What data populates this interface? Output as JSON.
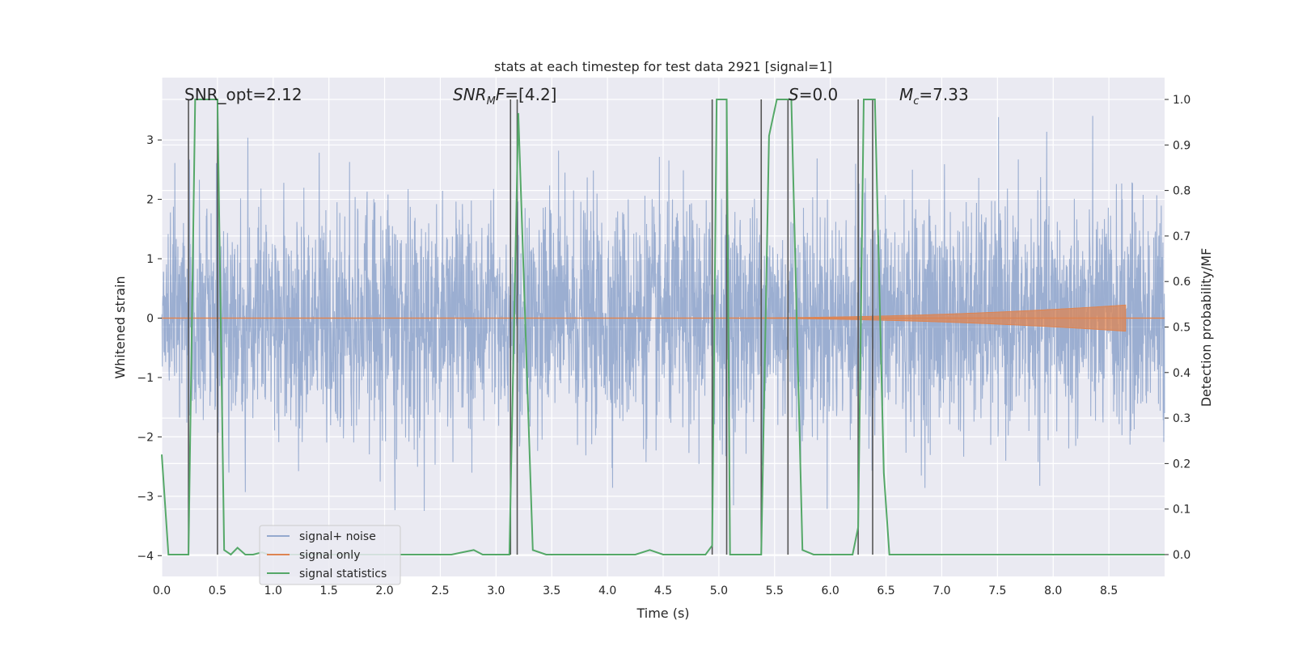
{
  "chart_data": {
    "type": "line",
    "title": "stats at each timestep for test data 2921 [signal=1]",
    "xlabel": "Time (s)",
    "ylabel": "Whitened strain",
    "y2label": "Detection probability/MF",
    "xlim": [
      0,
      9
    ],
    "ylim": [
      -4.35,
      4.05
    ],
    "y2lim": [
      -0.048,
      1.048
    ],
    "xticks": [
      0.0,
      0.5,
      1.0,
      1.5,
      2.0,
      2.5,
      3.0,
      3.5,
      4.0,
      4.5,
      5.0,
      5.5,
      6.0,
      6.5,
      7.0,
      7.5,
      8.0,
      8.5
    ],
    "xtick_labels": [
      "0.0",
      "0.5",
      "1.0",
      "1.5",
      "2.0",
      "2.5",
      "3.0",
      "3.5",
      "4.0",
      "4.5",
      "5.0",
      "5.5",
      "6.0",
      "6.5",
      "7.0",
      "7.5",
      "8.0",
      "8.5"
    ],
    "yticks": [
      -4,
      -3,
      -2,
      -1,
      0,
      1,
      2,
      3
    ],
    "ytick_labels": [
      "−4",
      "−3",
      "−2",
      "−1",
      "0",
      "1",
      "2",
      "3"
    ],
    "y2ticks": [
      0.0,
      0.1,
      0.2,
      0.3,
      0.4,
      0.5,
      0.6,
      0.7,
      0.8,
      0.9,
      1.0
    ],
    "y2tick_labels": [
      "0.0",
      "0.1",
      "0.2",
      "0.3",
      "0.4",
      "0.5",
      "0.6",
      "0.7",
      "0.8",
      "0.9",
      "1.0"
    ],
    "grid": true,
    "legend_position": "lower-left",
    "series": [
      {
        "name": "signal+ noise",
        "color": "#4c72b0",
        "kind": "noise",
        "sigma": 0.95,
        "duration": 9.0
      },
      {
        "name": "signal only",
        "color": "#dd8452",
        "kind": "chirp",
        "start": 4.8,
        "end": 8.65,
        "max_amp": 0.22
      },
      {
        "name": "signal statistics",
        "color": "#55a868",
        "kind": "probability",
        "axis": "right",
        "x": [
          0.0,
          0.06,
          0.1,
          0.15,
          0.24,
          0.3,
          0.35,
          0.4,
          0.45,
          0.5,
          0.56,
          0.62,
          0.68,
          0.75,
          0.82,
          0.9,
          0.96,
          1.02,
          1.1,
          2.5,
          2.6,
          2.7,
          2.8,
          2.88,
          2.95,
          3.05,
          3.12,
          3.2,
          3.33,
          3.45,
          3.6,
          3.8,
          4.0,
          4.25,
          4.38,
          4.5,
          4.6,
          4.75,
          4.88,
          4.94,
          4.98,
          5.0,
          5.07,
          5.1,
          5.2,
          5.3,
          5.38,
          5.45,
          5.52,
          5.6,
          5.65,
          5.75,
          5.85,
          6.0,
          6.1,
          6.2,
          6.25,
          6.3,
          6.4,
          6.48,
          6.53,
          6.6,
          7.0,
          8.0,
          9.0
        ],
        "y": [
          0.22,
          0.0,
          0.0,
          0.0,
          0.0,
          1.0,
          1.0,
          1.0,
          1.0,
          1.0,
          0.01,
          0.0,
          0.015,
          0.0,
          0.0,
          0.005,
          0.0,
          0.0,
          0.0,
          0.0,
          0.0,
          0.005,
          0.01,
          0.0,
          0.0,
          0.0,
          0.0,
          0.97,
          0.01,
          0.0,
          0.0,
          0.0,
          0.0,
          0.0,
          0.01,
          0.0,
          0.0,
          0.0,
          0.0,
          0.02,
          1.0,
          1.0,
          1.0,
          0.0,
          0.0,
          0.0,
          0.0,
          0.92,
          1.0,
          1.0,
          1.0,
          0.01,
          0.0,
          0.0,
          0.0,
          0.0,
          0.06,
          1.0,
          1.0,
          0.18,
          0.0,
          0.0,
          0.0,
          0.0,
          0.0
        ]
      }
    ],
    "vlines": [
      0.24,
      0.5,
      3.13,
      3.19,
      4.94,
      5.07,
      5.38,
      5.62,
      6.25,
      6.38
    ],
    "annotations": [
      {
        "id": "snr-opt",
        "text": "SNR_opt=2.12",
        "x": 0.2
      },
      {
        "id": "snr-mf",
        "text": "SNR_MF=[4.2]",
        "x": 2.6
      },
      {
        "id": "s-stat",
        "text": "S=0.0",
        "x": 5.6
      },
      {
        "id": "mc",
        "text": "M_c=7.33",
        "x": 6.6
      }
    ]
  }
}
